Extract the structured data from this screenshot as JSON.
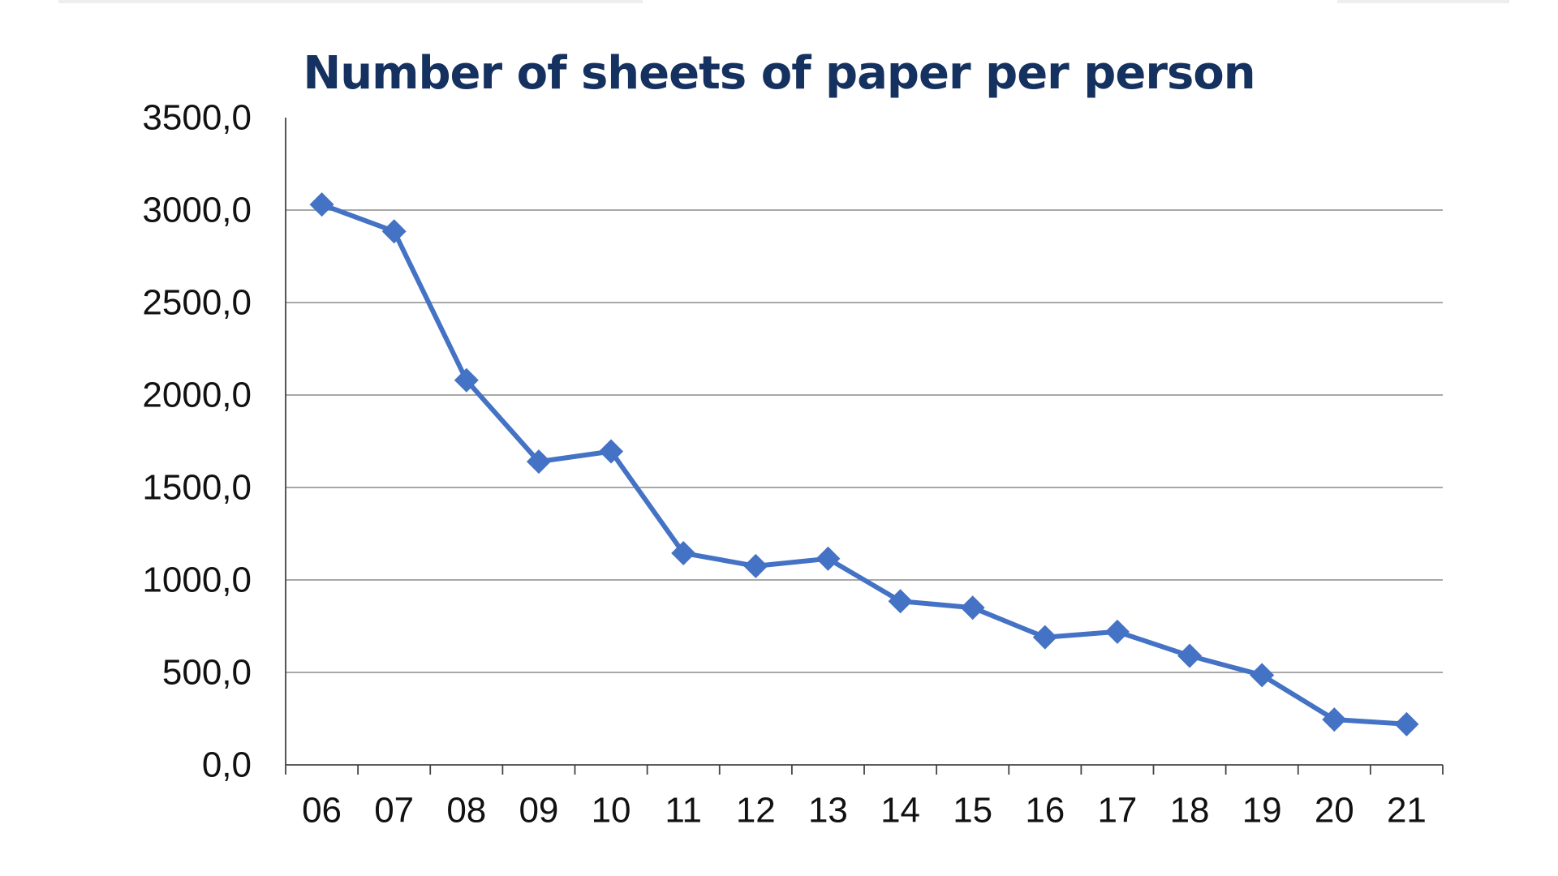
{
  "chart_data": {
    "type": "line",
    "title": "Number of sheets of paper per person",
    "xlabel": "",
    "ylabel": "",
    "categories": [
      "06",
      "07",
      "08",
      "09",
      "10",
      "11",
      "12",
      "13",
      "14",
      "15",
      "16",
      "17",
      "18",
      "19",
      "20",
      "21"
    ],
    "series": [
      {
        "values": [
          3030,
          2885,
          2080,
          1640,
          1695,
          1145,
          1075,
          1115,
          885,
          850,
          690,
          720,
          590,
          485,
          245,
          220
        ],
        "color": "#4472c4",
        "marker": "diamond"
      }
    ],
    "ylim": [
      0,
      3500
    ],
    "yticks": [
      "0,0",
      "500,0",
      "1000,0",
      "1500,0",
      "2000,0",
      "2500,0",
      "3000,0",
      "3500,0"
    ],
    "grid": "horizontal",
    "legend": "none"
  }
}
